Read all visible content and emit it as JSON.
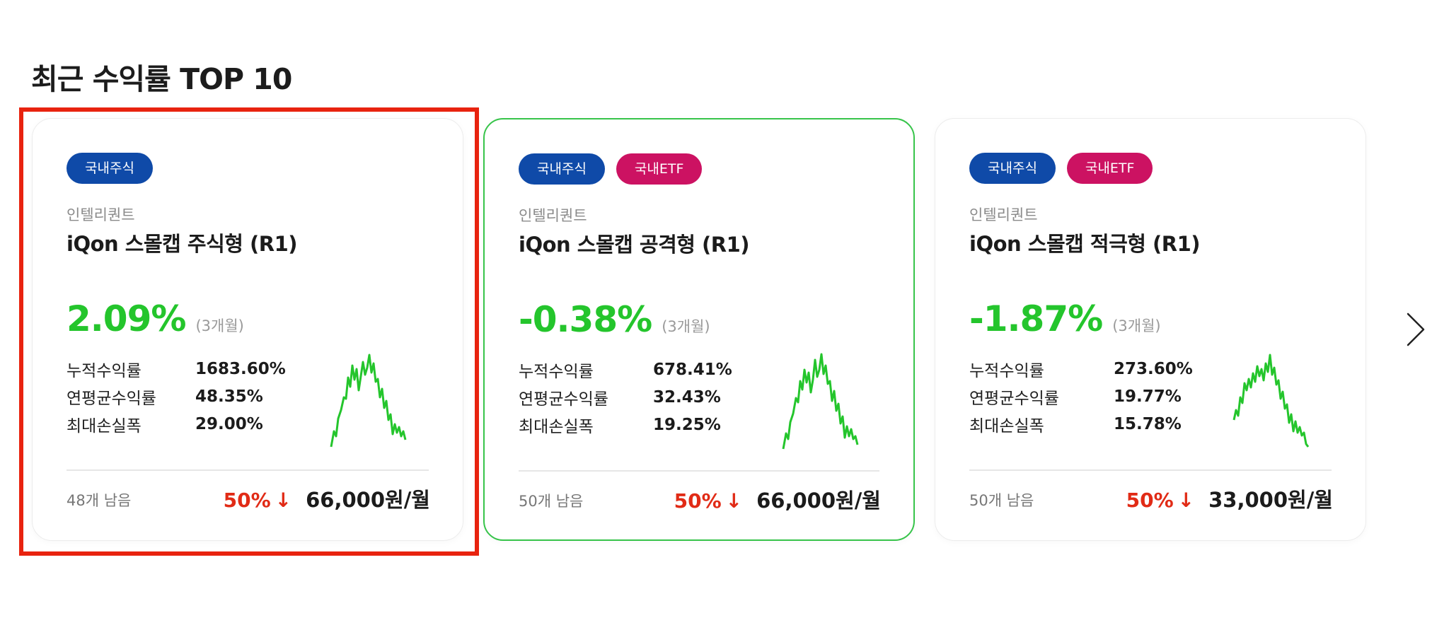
{
  "section": {
    "title": "최근 수익률 TOP 10"
  },
  "cards": [
    {
      "tags": [
        "국내주식"
      ],
      "provider": "인텔리퀀트",
      "name": "iQon 스몰캡 주식형 (R1)",
      "return_value": "2.09%",
      "return_period": "(3개월)",
      "stats": [
        {
          "label": "누적수익률",
          "value": "1683.60%"
        },
        {
          "label": "연평균수익률",
          "value": "48.35%"
        },
        {
          "label": "최대손실폭",
          "value": "29.00%"
        }
      ],
      "remaining": "48개 남음",
      "discount": "50%",
      "discount_arrow": "↓",
      "price": "66,000원/월"
    },
    {
      "tags": [
        "국내주식",
        "국내ETF"
      ],
      "provider": "인텔리퀀트",
      "name": "iQon 스몰캡 공격형 (R1)",
      "return_value": "-0.38%",
      "return_period": "(3개월)",
      "stats": [
        {
          "label": "누적수익률",
          "value": "678.41%"
        },
        {
          "label": "연평균수익률",
          "value": "32.43%"
        },
        {
          "label": "최대손실폭",
          "value": "19.25%"
        }
      ],
      "remaining": "50개 남음",
      "discount": "50%",
      "discount_arrow": "↓",
      "price": "66,000원/월"
    },
    {
      "tags": [
        "국내주식",
        "국내ETF"
      ],
      "provider": "인텔리퀀트",
      "name": "iQon 스몰캡 적극형 (R1)",
      "return_value": "-1.87%",
      "return_period": "(3개월)",
      "stats": [
        {
          "label": "누적수익률",
          "value": "273.60%"
        },
        {
          "label": "연평균수익률",
          "value": "19.77%"
        },
        {
          "label": "최대손실폭",
          "value": "15.78%"
        }
      ],
      "remaining": "50개 남음",
      "discount": "50%",
      "discount_arrow": "↓",
      "price": "33,000원/월"
    }
  ],
  "colors": {
    "positive": "#24c52c",
    "discount": "#e12b16",
    "tag_domestic_stock": "#0f4aa8",
    "tag_domestic_etf": "#cc1262",
    "selected_border": "#e8230f",
    "hover_border": "#37c44a"
  },
  "icons": {
    "next": "chevron-right-icon"
  }
}
